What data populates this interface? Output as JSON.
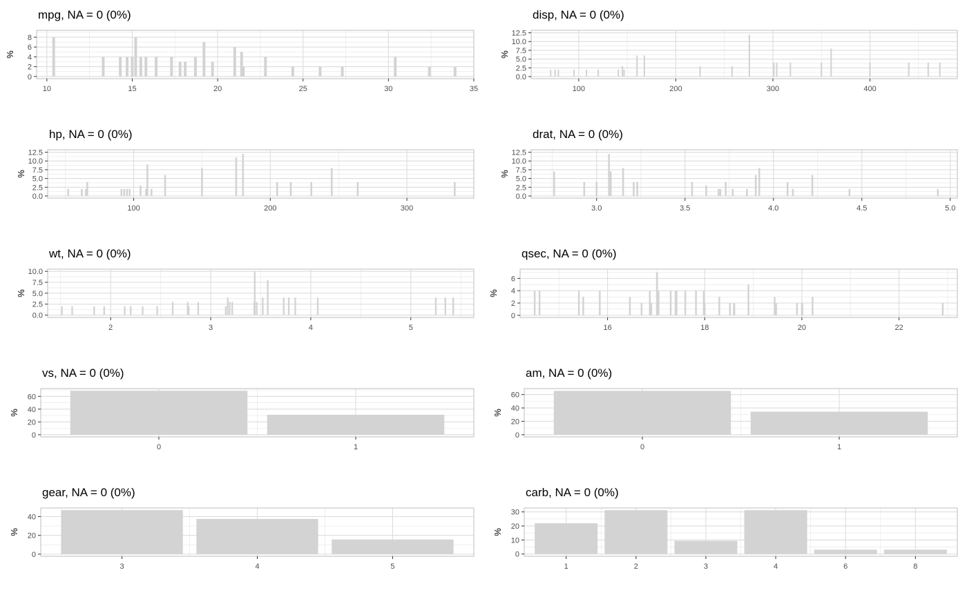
{
  "chart_data": [
    {
      "type": "bar",
      "title": "mpg, NA = 0 (0%)",
      "ylabel": "%",
      "bar_color": "#d3d3d3",
      "grid": true,
      "xlim": [
        9.4,
        35.0
      ],
      "ylim": [
        -0.45,
        9.4
      ],
      "x_ticks": [
        10,
        15,
        20,
        25,
        30,
        35
      ],
      "y_ticks": [
        0,
        2,
        4,
        6,
        8
      ],
      "y_tick_labels": [
        "0",
        "2",
        "4",
        "6",
        "8"
      ],
      "bar_width": 0.16,
      "x": [
        10.4,
        13.3,
        14.3,
        14.7,
        15.0,
        15.2,
        15.5,
        15.8,
        16.4,
        17.3,
        17.8,
        18.1,
        18.7,
        19.2,
        19.7,
        21.0,
        21.4,
        21.5,
        22.8,
        24.4,
        26.0,
        27.3,
        30.4,
        32.4,
        33.9
      ],
      "values": [
        8,
        4,
        4,
        4,
        4,
        8,
        4,
        4,
        4,
        4,
        3,
        3,
        4,
        7,
        3,
        6,
        5,
        2,
        4,
        2,
        2,
        2,
        4,
        2,
        2
      ]
    },
    {
      "type": "bar",
      "title": "disp, NA = 0 (0%)",
      "ylabel": "%",
      "bar_color": "#d3d3d3",
      "grid": true,
      "xlim": [
        51,
        490
      ],
      "ylim": [
        -0.6,
        13.2
      ],
      "x_ticks": [
        100,
        200,
        300,
        400
      ],
      "y_ticks": [
        0,
        2.5,
        5,
        7.5,
        10,
        12.5
      ],
      "y_tick_labels": [
        "0.0",
        "2.5",
        "5.0",
        "7.5",
        "10.0",
        "12.5"
      ],
      "bar_width": 1.5,
      "x": [
        71.1,
        75.7,
        79.0,
        95.1,
        108.0,
        120.1,
        140.8,
        145.0,
        146.7,
        160.0,
        167.6,
        225.0,
        258.0,
        275.8,
        301.0,
        304.0,
        318.0,
        350.0,
        360.0,
        400.0,
        440.0,
        460.0,
        472.0
      ],
      "values": [
        2,
        2,
        2,
        2,
        2,
        2,
        2,
        3,
        2,
        6,
        6,
        3,
        3,
        12,
        4,
        4,
        4,
        4,
        8,
        4,
        4,
        4,
        4
      ]
    },
    {
      "type": "bar",
      "title": "hp, NA = 0 (0%)",
      "ylabel": "%",
      "bar_color": "#d3d3d3",
      "grid": true,
      "xlim": [
        37,
        349
      ],
      "ylim": [
        -0.6,
        13.2
      ],
      "x_ticks": [
        100,
        200,
        300
      ],
      "y_ticks": [
        0,
        2.5,
        5,
        7.5,
        10,
        12.5
      ],
      "y_tick_labels": [
        "0.0",
        "2.5",
        "5.0",
        "7.5",
        "10.0",
        "12.5"
      ],
      "bar_width": 1.3,
      "x": [
        52,
        62,
        65,
        66,
        91,
        93,
        95,
        97,
        105,
        109,
        110,
        113,
        123,
        150,
        175,
        180,
        205,
        215,
        230,
        245,
        264,
        335
      ],
      "values": [
        2,
        2,
        2,
        4,
        2,
        2,
        2,
        2,
        3,
        2,
        9,
        2,
        6,
        8,
        11,
        12,
        4,
        4,
        4,
        8,
        4,
        4
      ]
    },
    {
      "type": "bar",
      "title": "drat, NA = 0 (0%)",
      "ylabel": "%",
      "bar_color": "#d3d3d3",
      "grid": true,
      "xlim": [
        2.63,
        5.04
      ],
      "ylim": [
        -0.6,
        13.2
      ],
      "x_ticks": [
        3.0,
        3.5,
        4.0,
        4.5,
        5.0
      ],
      "x_tick_labels": [
        "3.0",
        "3.5",
        "4.0",
        "4.5",
        "5.0"
      ],
      "y_ticks": [
        0,
        2.5,
        5,
        7.5,
        10,
        12.5
      ],
      "y_tick_labels": [
        "0.0",
        "2.5",
        "5.0",
        "7.5",
        "10.0",
        "12.5"
      ],
      "bar_width": 0.01,
      "x": [
        2.76,
        2.93,
        3.0,
        3.07,
        3.08,
        3.15,
        3.21,
        3.23,
        3.54,
        3.62,
        3.69,
        3.7,
        3.73,
        3.77,
        3.85,
        3.9,
        3.92,
        4.08,
        4.11,
        4.22,
        4.43,
        4.93
      ],
      "values": [
        7,
        4,
        4,
        12,
        7,
        8,
        4,
        4,
        4,
        3,
        2,
        2,
        4,
        2,
        2,
        6,
        8,
        4,
        2,
        6,
        2,
        2
      ]
    },
    {
      "type": "bar",
      "title": "wt, NA = 0 (0%)",
      "ylabel": "%",
      "bar_color": "#d3d3d3",
      "grid": true,
      "xlim": [
        1.37,
        5.63
      ],
      "ylim": [
        -0.55,
        10.5
      ],
      "x_ticks": [
        2,
        3,
        4,
        5
      ],
      "y_ticks": [
        0,
        2.5,
        5,
        7.5,
        10
      ],
      "y_tick_labels": [
        "0.0",
        "2.5",
        "5.0",
        "7.5",
        "10.0"
      ],
      "bar_width": 0.016,
      "x": [
        1.513,
        1.615,
        1.835,
        1.935,
        2.14,
        2.2,
        2.32,
        2.465,
        2.62,
        2.77,
        2.78,
        2.875,
        3.15,
        3.17,
        3.19,
        3.215,
        3.435,
        3.44,
        3.46,
        3.52,
        3.57,
        3.73,
        3.78,
        3.845,
        4.07,
        5.25,
        5.345,
        5.424
      ],
      "values": [
        2,
        2,
        2,
        2,
        2,
        2,
        2,
        2,
        3,
        3,
        2,
        3,
        2,
        4,
        3,
        3,
        3,
        10,
        3,
        4,
        8,
        4,
        4,
        4,
        4,
        4,
        4,
        4
      ]
    },
    {
      "type": "bar",
      "title": "qsec, NA = 0 (0%)",
      "ylabel": "%",
      "bar_color": "#d3d3d3",
      "grid": true,
      "xlim": [
        14.2,
        23.2
      ],
      "ylim": [
        -0.35,
        7.5
      ],
      "x_ticks": [
        16,
        18,
        20,
        22
      ],
      "y_ticks": [
        0,
        2,
        4,
        6
      ],
      "y_tick_labels": [
        "0",
        "2",
        "4",
        "6"
      ],
      "bar_width": 0.035,
      "x": [
        14.5,
        14.6,
        15.41,
        15.5,
        15.84,
        16.46,
        16.7,
        16.87,
        16.9,
        17.02,
        17.05,
        17.3,
        17.4,
        17.42,
        17.6,
        17.82,
        17.98,
        18.0,
        18.3,
        18.52,
        18.6,
        18.61,
        18.9,
        19.44,
        19.47,
        19.9,
        20.0,
        20.01,
        20.22,
        22.9
      ],
      "values": [
        4,
        4,
        4,
        3,
        4,
        3,
        2,
        4,
        2,
        7,
        4,
        4,
        4,
        4,
        4,
        4,
        4,
        2,
        3,
        2,
        2,
        2,
        5,
        3,
        2,
        2,
        2,
        2,
        3,
        2
      ]
    },
    {
      "type": "bar",
      "title": "vs, NA = 0 (0%)",
      "ylabel": "%",
      "bar_color": "#d3d3d3",
      "grid": true,
      "categories": [
        "0",
        "1"
      ],
      "values": [
        68.75,
        31.25
      ],
      "ylim": [
        -3.4,
        72.2
      ],
      "y_ticks": [
        0,
        20,
        40,
        60
      ],
      "y_tick_labels": [
        "0",
        "20",
        "40",
        "60"
      ]
    },
    {
      "type": "bar",
      "title": "am, NA = 0 (0%)",
      "ylabel": "%",
      "bar_color": "#d3d3d3",
      "grid": true,
      "categories": [
        "0",
        "1"
      ],
      "values": [
        65.6,
        34.4
      ],
      "ylim": [
        -3.3,
        69.0
      ],
      "y_ticks": [
        0,
        20,
        40,
        60
      ],
      "y_tick_labels": [
        "0",
        "20",
        "40",
        "60"
      ]
    },
    {
      "type": "bar",
      "title": "gear, NA = 0 (0%)",
      "ylabel": "%",
      "bar_color": "#d3d3d3",
      "grid": true,
      "categories": [
        "3",
        "4",
        "5"
      ],
      "values": [
        46.9,
        37.5,
        15.6
      ],
      "ylim": [
        -2.3,
        49.2
      ],
      "y_ticks": [
        0,
        20,
        40
      ],
      "y_tick_labels": [
        "0",
        "20",
        "40"
      ]
    },
    {
      "type": "bar",
      "title": "carb, NA = 0 (0%)",
      "ylabel": "%",
      "bar_color": "#d3d3d3",
      "grid": true,
      "categories": [
        "1",
        "2",
        "3",
        "4",
        "6",
        "8"
      ],
      "values": [
        21.9,
        31.25,
        9.4,
        31.25,
        3.1,
        3.1
      ],
      "ylim": [
        -1.6,
        32.8
      ],
      "y_ticks": [
        0,
        10,
        20,
        30
      ],
      "y_tick_labels": [
        "0",
        "10",
        "20",
        "30"
      ]
    }
  ]
}
